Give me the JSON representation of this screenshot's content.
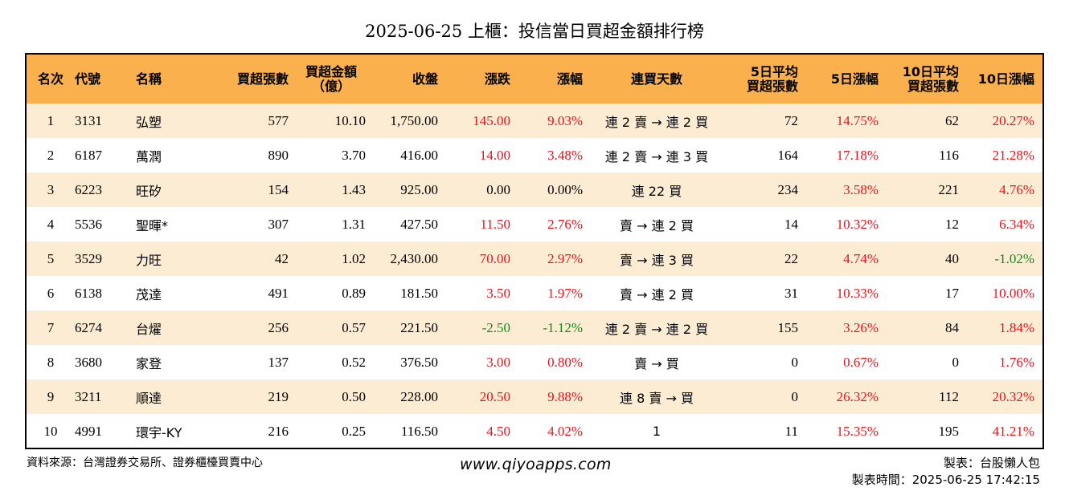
{
  "title": "2025-06-25 上櫃：投信當日買超金額排行榜",
  "headers": {
    "rank": "名次",
    "code": "代號",
    "name": "名稱",
    "buy_lots": "買超張數",
    "buy_amount_1": "買超金額",
    "buy_amount_2": "（億）",
    "close": "收盤",
    "change": "漲跌",
    "change_pct": "漲幅",
    "streak": "連買天數",
    "avg5_1": "5日平均",
    "avg5_2": "買超張數",
    "pct5": "5日漲幅",
    "avg10_1": "10日平均",
    "avg10_2": "買超張數",
    "pct10": "10日漲幅"
  },
  "rows": [
    {
      "rank": "1",
      "code": "3131",
      "name": "弘塑",
      "buy_lots": "577",
      "buy_amount": "10.10",
      "close": "1,750.00",
      "change": "145.00",
      "change_pct": "9.03%",
      "streak": "連 2 賣 → 連 2 買",
      "avg5": "72",
      "pct5": "14.75%",
      "avg10": "62",
      "pct10": "20.27%"
    },
    {
      "rank": "2",
      "code": "6187",
      "name": "萬潤",
      "buy_lots": "890",
      "buy_amount": "3.70",
      "close": "416.00",
      "change": "14.00",
      "change_pct": "3.48%",
      "streak": "連 2 賣 → 連 3 買",
      "avg5": "164",
      "pct5": "17.18%",
      "avg10": "116",
      "pct10": "21.28%"
    },
    {
      "rank": "3",
      "code": "6223",
      "name": "旺矽",
      "buy_lots": "154",
      "buy_amount": "1.43",
      "close": "925.00",
      "change": "0.00",
      "change_pct": "0.00%",
      "streak": "連 22 買",
      "avg5": "234",
      "pct5": "3.58%",
      "avg10": "221",
      "pct10": "4.76%"
    },
    {
      "rank": "4",
      "code": "5536",
      "name": "聖暉*",
      "buy_lots": "307",
      "buy_amount": "1.31",
      "close": "427.50",
      "change": "11.50",
      "change_pct": "2.76%",
      "streak": "賣 → 連 2 買",
      "avg5": "14",
      "pct5": "10.32%",
      "avg10": "12",
      "pct10": "6.34%"
    },
    {
      "rank": "5",
      "code": "3529",
      "name": "力旺",
      "buy_lots": "42",
      "buy_amount": "1.02",
      "close": "2,430.00",
      "change": "70.00",
      "change_pct": "2.97%",
      "streak": "賣 → 連 3 買",
      "avg5": "22",
      "pct5": "4.74%",
      "avg10": "40",
      "pct10": "-1.02%"
    },
    {
      "rank": "6",
      "code": "6138",
      "name": "茂達",
      "buy_lots": "491",
      "buy_amount": "0.89",
      "close": "181.50",
      "change": "3.50",
      "change_pct": "1.97%",
      "streak": "賣 → 連 2 買",
      "avg5": "31",
      "pct5": "10.33%",
      "avg10": "17",
      "pct10": "10.00%"
    },
    {
      "rank": "7",
      "code": "6274",
      "name": "台燿",
      "buy_lots": "256",
      "buy_amount": "0.57",
      "close": "221.50",
      "change": "-2.50",
      "change_pct": "-1.12%",
      "streak": "連 2 賣 → 連 2 買",
      "avg5": "155",
      "pct5": "3.26%",
      "avg10": "84",
      "pct10": "1.84%"
    },
    {
      "rank": "8",
      "code": "3680",
      "name": "家登",
      "buy_lots": "137",
      "buy_amount": "0.52",
      "close": "376.50",
      "change": "3.00",
      "change_pct": "0.80%",
      "streak": "賣 → 買",
      "avg5": "0",
      "pct5": "0.67%",
      "avg10": "0",
      "pct10": "1.76%"
    },
    {
      "rank": "9",
      "code": "3211",
      "name": "順達",
      "buy_lots": "219",
      "buy_amount": "0.50",
      "close": "228.00",
      "change": "20.50",
      "change_pct": "9.88%",
      "streak": "連 8 賣 → 買",
      "avg5": "0",
      "pct5": "26.32%",
      "avg10": "112",
      "pct10": "20.32%"
    },
    {
      "rank": "10",
      "code": "4991",
      "name": "環宇-KY",
      "buy_lots": "216",
      "buy_amount": "0.25",
      "close": "116.50",
      "change": "4.50",
      "change_pct": "4.02%",
      "streak": "1",
      "avg5": "11",
      "pct5": "15.35%",
      "avg10": "195",
      "pct10": "41.21%"
    }
  ],
  "colors": {
    "header_bg": "#f9b04d",
    "stripe_bg": "#fcecd4",
    "up": "#e6151c",
    "down": "#138a1a"
  },
  "footer": {
    "source": "資料來源：台灣證券交易所、證券櫃檯買賣中心",
    "website": "www.qiyoapps.com",
    "maker": "製表：台股懶人包",
    "made_time": "製表時間：2025-06-25 17:42:15"
  }
}
